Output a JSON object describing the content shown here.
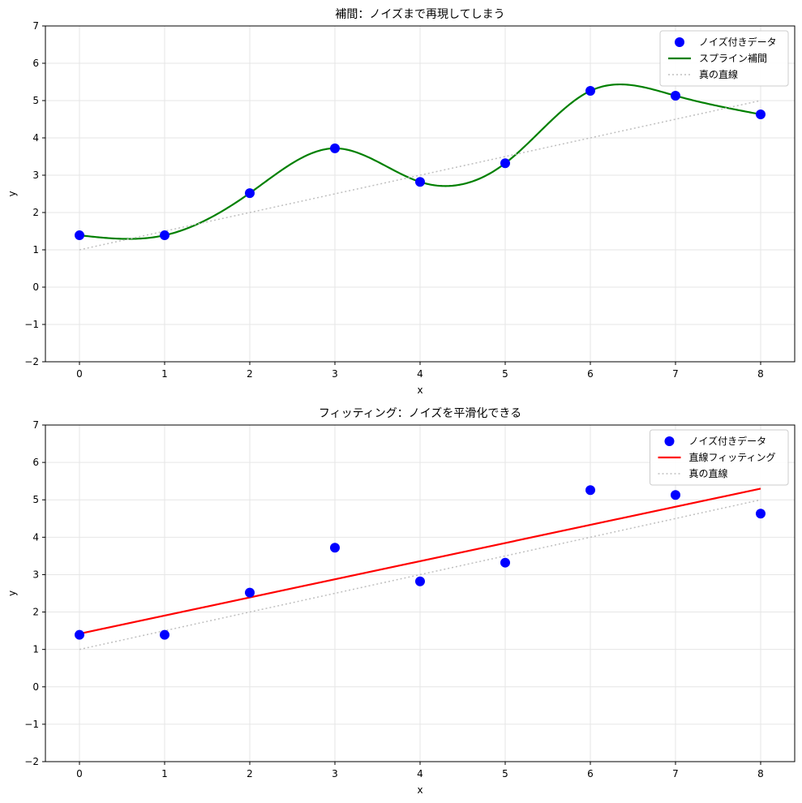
{
  "colors": {
    "data_points": "#0000ff",
    "spline": "#008000",
    "fit_line": "#ff0000",
    "true_line": "#bfbfbf",
    "grid": "#e6e6e6",
    "axes": "#000000"
  },
  "chart_data": [
    {
      "type": "line",
      "title": "補間：ノイズまで再現してしまう",
      "xlabel": "x",
      "ylabel": "y",
      "xlim": [
        -0.4,
        8.4
      ],
      "ylim": [
        -2,
        7
      ],
      "xticks": [
        0,
        1,
        2,
        3,
        4,
        5,
        6,
        7,
        8
      ],
      "yticks": [
        -2,
        -1,
        0,
        1,
        2,
        3,
        4,
        5,
        6,
        7
      ],
      "ytick_labels": [
        "−2",
        "−1",
        "0",
        "1",
        "2",
        "3",
        "4",
        "5",
        "6",
        "7"
      ],
      "grid": true,
      "legend_position": "top-right",
      "series": [
        {
          "name": "ノイズ付きデータ",
          "kind": "scatter",
          "color": "#0000ff",
          "x": [
            0,
            1,
            2,
            3,
            4,
            5,
            6,
            7,
            8
          ],
          "y": [
            1.39,
            1.39,
            2.52,
            3.72,
            2.82,
            3.32,
            5.26,
            5.13,
            4.63
          ]
        },
        {
          "name": "スプライン補間",
          "kind": "spline",
          "color": "#008000",
          "x": [
            0,
            1,
            2,
            3,
            4,
            5,
            6,
            7,
            8
          ],
          "y": [
            1.39,
            1.39,
            2.52,
            3.72,
            2.82,
            3.32,
            5.26,
            5.13,
            4.63
          ]
        },
        {
          "name": "真の直線",
          "kind": "dotted",
          "color": "#bfbfbf",
          "x": [
            0,
            8
          ],
          "y": [
            1,
            5
          ]
        }
      ]
    },
    {
      "type": "line",
      "title": "フィッティング：ノイズを平滑化できる",
      "xlabel": "x",
      "ylabel": "y",
      "xlim": [
        -0.4,
        8.4
      ],
      "ylim": [
        -2,
        7
      ],
      "xticks": [
        0,
        1,
        2,
        3,
        4,
        5,
        6,
        7,
        8
      ],
      "yticks": [
        -2,
        -1,
        0,
        1,
        2,
        3,
        4,
        5,
        6,
        7
      ],
      "ytick_labels": [
        "−2",
        "−1",
        "0",
        "1",
        "2",
        "3",
        "4",
        "5",
        "6",
        "7"
      ],
      "grid": true,
      "legend_position": "top-right",
      "series": [
        {
          "name": "ノイズ付きデータ",
          "kind": "scatter",
          "color": "#0000ff",
          "x": [
            0,
            1,
            2,
            3,
            4,
            5,
            6,
            7,
            8
          ],
          "y": [
            1.39,
            1.39,
            2.52,
            3.72,
            2.82,
            3.32,
            5.26,
            5.13,
            4.63
          ]
        },
        {
          "name": "直線フィッティング",
          "kind": "line",
          "color": "#ff0000",
          "x": [
            0,
            8
          ],
          "y": [
            1.42,
            5.3
          ]
        },
        {
          "name": "真の直線",
          "kind": "dotted",
          "color": "#bfbfbf",
          "x": [
            0,
            8
          ],
          "y": [
            1,
            5
          ]
        }
      ]
    }
  ]
}
